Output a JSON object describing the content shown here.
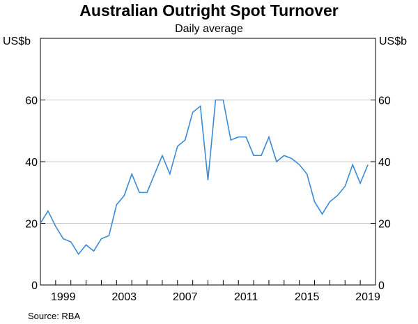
{
  "chart_data": {
    "type": "line",
    "title": "Australian Outright Spot Turnover",
    "subtitle": "Daily average",
    "ylabel_left": "US$b",
    "ylabel_right": "US$b",
    "xlabel": "",
    "source": "Source:   RBA",
    "ylim": [
      0,
      80
    ],
    "yticks": [
      0,
      20,
      40,
      60
    ],
    "xlim": [
      1998.0,
      2020.0
    ],
    "xticks": [
      1999,
      2003,
      2007,
      2011,
      2015,
      2019
    ],
    "grid": "horizontal",
    "legend": "none",
    "series": [
      {
        "color": "#3a8ad4",
        "x": [
          1998.0,
          1998.5,
          1999.0,
          1999.5,
          2000.0,
          2000.5,
          2001.0,
          2001.5,
          2002.0,
          2002.5,
          2003.0,
          2003.5,
          2004.0,
          2004.5,
          2005.0,
          2005.5,
          2006.0,
          2006.5,
          2007.0,
          2007.5,
          2008.0,
          2008.5,
          2009.0,
          2009.5,
          2010.0,
          2010.5,
          2011.0,
          2011.5,
          2012.0,
          2012.5,
          2013.0,
          2013.5,
          2014.0,
          2014.5,
          2015.0,
          2015.5,
          2016.0,
          2016.5,
          2017.0,
          2017.5,
          2018.0,
          2018.5,
          2019.0,
          2019.5
        ],
        "values": [
          20,
          24,
          19,
          15,
          14,
          10,
          13,
          11,
          15,
          16,
          26,
          29,
          36,
          30,
          30,
          36,
          42,
          36,
          45,
          47,
          56,
          58,
          34,
          60,
          60,
          47,
          48,
          48,
          42,
          42,
          48,
          40,
          42,
          41,
          39,
          36,
          27,
          23,
          27,
          29,
          32,
          39,
          33,
          39
        ]
      }
    ]
  }
}
